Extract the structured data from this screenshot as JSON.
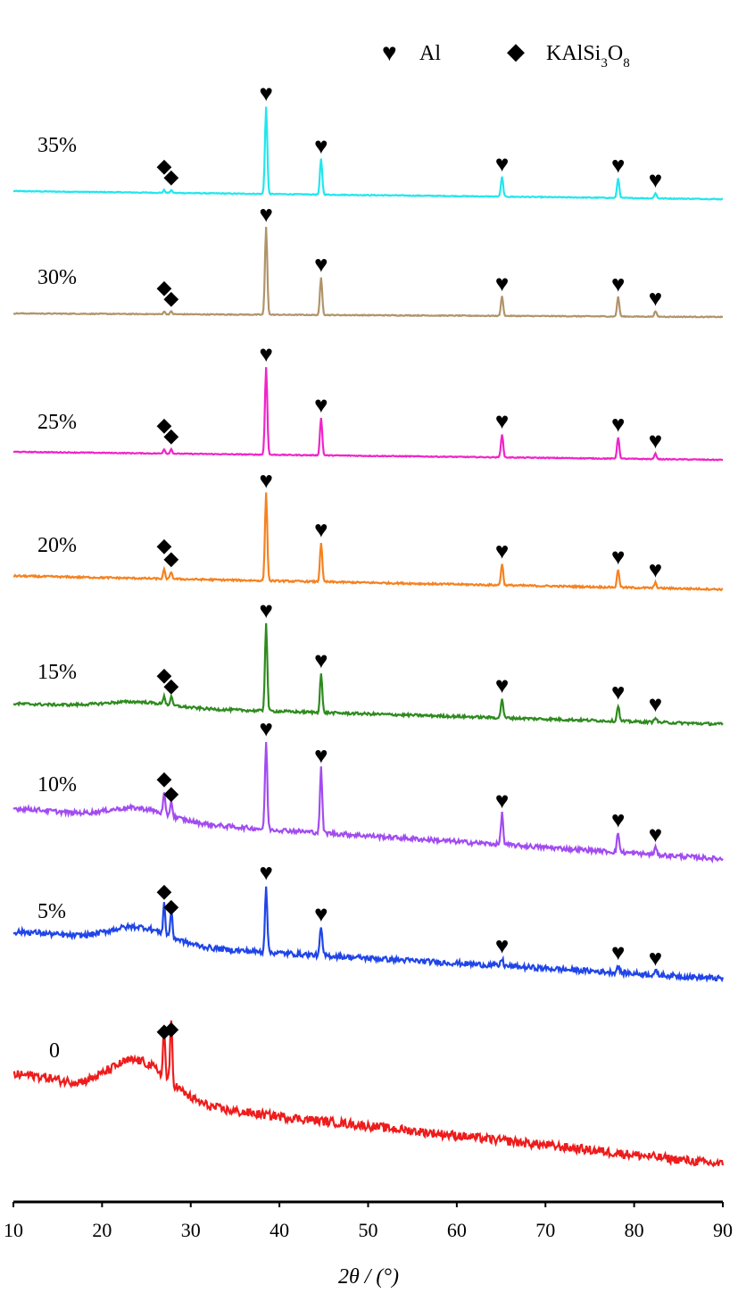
{
  "chart_data": {
    "type": "line",
    "title": "",
    "xlabel": "2θ / (°)",
    "ylabel": "",
    "xlim": [
      10,
      90
    ],
    "xticks": [
      "10",
      "20",
      "30",
      "40",
      "50",
      "60",
      "70",
      "80",
      "90"
    ],
    "grid": false,
    "legend_position": "top-right",
    "legend": [
      {
        "name": "Al",
        "marker": "heart-icon"
      },
      {
        "name": "KAlSi",
        "sub1": "3",
        "mid": "O",
        "sub2": "8",
        "marker": "diamond-icon"
      }
    ],
    "peaks": {
      "Al": [
        38.5,
        44.7,
        65.1,
        78.2,
        82.4
      ],
      "KAlSi3O8": [
        27.0,
        27.8
      ]
    },
    "series": [
      {
        "name": "35%",
        "color": "#22e6ee",
        "al_peaks": [
          38.5,
          44.7,
          65.1,
          78.2,
          82.4
        ],
        "al_heights": [
          98,
          40,
          22,
          22,
          6
        ],
        "k_peaks": [
          27.0,
          27.8
        ],
        "k_heights": [
          3,
          3
        ],
        "hump": 0,
        "noise": 1
      },
      {
        "name": "30%",
        "color": "#b0946a",
        "al_peaks": [
          38.5,
          44.7,
          65.1,
          78.2,
          82.4
        ],
        "al_heights": [
          98,
          42,
          22,
          22,
          6
        ],
        "k_peaks": [
          27.0,
          27.8
        ],
        "k_heights": [
          3,
          3
        ],
        "hump": 0,
        "noise": 1
      },
      {
        "name": "25%",
        "color": "#f024c8",
        "al_peaks": [
          38.5,
          44.7,
          65.1,
          78.2,
          82.4
        ],
        "al_heights": [
          98,
          42,
          26,
          24,
          6
        ],
        "k_peaks": [
          27.0,
          27.8
        ],
        "k_heights": [
          5,
          5
        ],
        "hump": 0,
        "noise": 1
      },
      {
        "name": "20%",
        "color": "#f58220",
        "al_peaks": [
          38.5,
          44.7,
          65.1,
          78.2,
          82.4
        ],
        "al_heights": [
          98,
          44,
          24,
          20,
          6
        ],
        "k_peaks": [
          27.0,
          27.8
        ],
        "k_heights": [
          10,
          8
        ],
        "hump": 0,
        "noise": 2
      },
      {
        "name": "15%",
        "color": "#2e8b1e",
        "al_peaks": [
          38.5,
          44.7,
          65.1,
          78.2,
          82.4
        ],
        "al_heights": [
          98,
          44,
          22,
          18,
          6
        ],
        "k_peaks": [
          27.0,
          27.8
        ],
        "k_heights": [
          10,
          10
        ],
        "hump": 6,
        "noise": 3
      },
      {
        "name": "10%",
        "color": "#a24cf0",
        "al_peaks": [
          38.5,
          44.7,
          65.1,
          78.2,
          82.4
        ],
        "al_heights": [
          98,
          72,
          35,
          22,
          8
        ],
        "k_peaks": [
          27.0,
          27.8
        ],
        "k_heights": [
          22,
          18
        ],
        "hump": 14,
        "noise": 5
      },
      {
        "name": "5%",
        "color": "#2045e8",
        "al_peaks": [
          38.5,
          44.7,
          65.1,
          78.2,
          82.4
        ],
        "al_heights": [
          75,
          32,
          8,
          8,
          4
        ],
        "k_peaks": [
          27.0,
          27.8
        ],
        "k_heights": [
          35,
          30
        ],
        "hump": 20,
        "noise": 6
      },
      {
        "name": "0",
        "color": "#ee1c1c",
        "al_peaks": [],
        "al_heights": [],
        "k_peaks": [
          27.0,
          27.8
        ],
        "k_heights": [
          55,
          70
        ],
        "hump": 45,
        "noise": 10
      }
    ]
  }
}
